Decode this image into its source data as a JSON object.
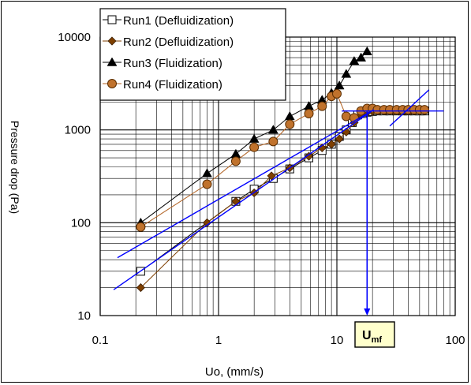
{
  "chart_data": {
    "type": "scatter",
    "xscale": "log",
    "yscale": "log",
    "xlim": [
      0.1,
      100
    ],
    "ylim": [
      10,
      10000
    ],
    "xlabel": "Uo, (mm/s)",
    "ylabel": "Pressure drop (Pa)",
    "x_tick_labels": [
      "0.1",
      "1",
      "10",
      "100"
    ],
    "y_tick_labels": [
      "10",
      "100",
      "1000",
      "10000"
    ],
    "grid": true,
    "legend_placement": "top-left",
    "series": [
      {
        "name": "Run1 (Defluidization)",
        "marker": "square-open",
        "color": "#000000",
        "x": [
          0.22,
          1.4,
          2.0,
          2.9,
          4.0,
          5.8,
          7.5,
          9.0,
          10.5,
          12.0,
          13.5,
          15.0,
          16.5,
          18.0,
          20,
          22,
          25,
          28,
          32,
          36,
          40,
          45,
          50,
          55
        ],
        "y": [
          30,
          170,
          230,
          300,
          380,
          500,
          600,
          700,
          850,
          1000,
          1200,
          1450,
          1500,
          1550,
          1580,
          1600,
          1600,
          1600,
          1600,
          1600,
          1600,
          1600,
          1600,
          1600
        ]
      },
      {
        "name": "Run2 (Defluidization)",
        "marker": "diamond",
        "color": "#7f3f00",
        "x": [
          0.22,
          0.8,
          1.4,
          2.0,
          2.8,
          4.0,
          5.8,
          7.5,
          9.0,
          10.5,
          12.0,
          14.0,
          16.0,
          18.0,
          20,
          23,
          26,
          30,
          34,
          38,
          42,
          46,
          50,
          55
        ],
        "y": [
          20,
          100,
          170,
          210,
          320,
          390,
          520,
          640,
          700,
          800,
          950,
          1200,
          1450,
          1550,
          1580,
          1600,
          1600,
          1600,
          1600,
          1600,
          1600,
          1600,
          1600,
          1600
        ]
      },
      {
        "name": "Run3 (Fluidization)",
        "marker": "triangle",
        "color": "#000000",
        "x": [
          0.22,
          0.8,
          1.4,
          2.0,
          2.9,
          4.0,
          5.8,
          7.5,
          9.0,
          10.5,
          12.0,
          14.0,
          16.0,
          18.0
        ],
        "y": [
          100,
          340,
          550,
          800,
          1000,
          1400,
          1800,
          2100,
          2500,
          3000,
          4000,
          5500,
          6000,
          7000
        ]
      },
      {
        "name": "Run4 (Fluidization)",
        "marker": "circle",
        "color": "#7f3f00",
        "x": [
          0.22,
          0.8,
          1.4,
          2.0,
          2.9,
          4.0,
          5.8,
          7.5,
          9.0,
          10.0,
          12.0,
          14.0,
          16.0,
          18.0,
          20,
          22,
          25,
          28,
          32,
          36,
          40,
          45,
          50,
          55
        ],
        "y": [
          90,
          260,
          460,
          650,
          750,
          1150,
          1500,
          1800,
          2300,
          2450,
          1400,
          1350,
          1600,
          1700,
          1700,
          1650,
          1650,
          1650,
          1650,
          1650,
          1650,
          1650,
          1650,
          1650
        ]
      }
    ],
    "annotations": {
      "fit_line_color": "#0000ff",
      "umf_label_main": "U",
      "umf_label_sub": "mf",
      "umf_x": 18,
      "plateau_y": 1600,
      "umf_box_fill": "#ffffcc"
    }
  }
}
